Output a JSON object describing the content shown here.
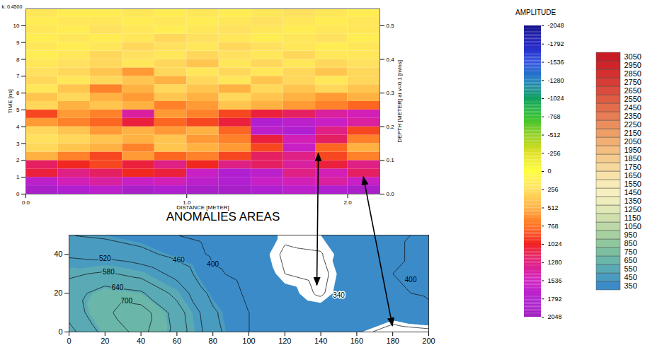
{
  "chart_data": [
    {
      "type": "heatmap",
      "corner_label": "k: 0.4500",
      "x_label": "DISTANCE [METER]",
      "y_label": "TIME [ns]",
      "y2_label": "DEPTH [METER] at v=0.1 [m/ns]",
      "xlim": [
        0,
        2.2
      ],
      "xticks": [
        {
          "value": 0,
          "label": "0.0"
        },
        {
          "value": 1,
          "label": "1.0"
        },
        {
          "value": 2,
          "label": "2.0"
        }
      ],
      "ylim": [
        0,
        11
      ],
      "yticks": [
        0,
        1,
        2,
        3,
        4,
        5,
        6,
        7,
        8,
        9,
        10
      ],
      "y2lim": [
        0,
        0.55
      ],
      "y2ticks": [
        {
          "value": 0,
          "label": "0.0"
        },
        {
          "value": 0.1,
          "label": "0.1"
        },
        {
          "value": 0.2,
          "label": "0.2"
        },
        {
          "value": 0.3,
          "label": "0.3"
        },
        {
          "value": 0.4,
          "label": "0.4"
        },
        {
          "value": 0.5,
          "label": "0.5"
        }
      ],
      "x_bins": [
        0,
        0.2,
        0.4,
        0.6,
        0.8,
        1.0,
        1.2,
        1.4,
        1.6,
        1.8,
        2.0,
        2.2
      ],
      "y_bins": [
        0,
        0.5,
        1,
        1.5,
        2,
        2.5,
        3,
        3.5,
        4,
        4.5,
        5,
        5.5,
        6,
        6.5,
        7,
        7.5,
        8,
        8.5,
        9,
        9.5,
        10,
        10.5,
        11
      ],
      "cells": [
        [
          1900,
          1800,
          1700,
          1900,
          1800,
          1900,
          1900,
          1800,
          1700,
          1800,
          1900
        ],
        [
          1700,
          1500,
          1400,
          1600,
          1500,
          1700,
          1800,
          1600,
          1500,
          1400,
          1600
        ],
        [
          1100,
          1300,
          1200,
          1000,
          1100,
          1600,
          1800,
          1700,
          1300,
          1500,
          1200
        ],
        [
          1200,
          1000,
          900,
          1100,
          1300,
          1000,
          1300,
          1200,
          1400,
          1100,
          1300
        ],
        [
          500,
          700,
          900,
          600,
          800,
          700,
          900,
          1200,
          1300,
          900,
          700
        ],
        [
          300,
          400,
          500,
          700,
          400,
          500,
          600,
          900,
          1600,
          800,
          500
        ],
        [
          250,
          300,
          400,
          500,
          400,
          600,
          700,
          1100,
          1500,
          1200,
          700
        ],
        [
          300,
          400,
          600,
          500,
          600,
          500,
          800,
          1700,
          1800,
          1300,
          900
        ],
        [
          600,
          700,
          800,
          1100,
          800,
          900,
          1100,
          1800,
          1700,
          1600,
          1400
        ],
        [
          900,
          600,
          700,
          1400,
          600,
          700,
          900,
          1100,
          1200,
          1400,
          1500
        ],
        [
          300,
          500,
          400,
          500,
          700,
          600,
          400,
          500,
          600,
          700,
          800
        ],
        [
          400,
          300,
          500,
          600,
          400,
          500,
          300,
          400,
          500,
          600,
          500
        ],
        [
          200,
          400,
          700,
          500,
          300,
          400,
          500,
          300,
          400,
          300,
          400
        ],
        [
          300,
          200,
          300,
          400,
          500,
          300,
          200,
          400,
          300,
          200,
          300
        ],
        [
          250,
          300,
          400,
          600,
          300,
          200,
          300,
          200,
          300,
          400,
          300
        ],
        [
          200,
          250,
          300,
          200,
          300,
          400,
          200,
          300,
          200,
          300,
          250
        ],
        [
          150,
          200,
          300,
          250,
          200,
          300,
          250,
          200,
          300,
          200,
          200
        ],
        [
          200,
          150,
          200,
          300,
          250,
          200,
          300,
          250,
          200,
          150,
          200
        ],
        [
          150,
          200,
          150,
          200,
          300,
          250,
          200,
          150,
          200,
          250,
          150
        ],
        [
          200,
          150,
          250,
          200,
          150,
          200,
          250,
          200,
          150,
          200,
          200
        ],
        [
          150,
          200,
          200,
          150,
          200,
          150,
          200,
          250,
          200,
          150,
          200
        ],
        [
          200,
          150,
          150,
          200,
          150,
          200,
          150,
          200,
          250,
          200,
          150
        ]
      ],
      "colorbar": {
        "label": "AMPLITUDE",
        "range": [
          -2048,
          2048
        ],
        "ticks": [
          -2048,
          -1792,
          -1536,
          -1280,
          -1024,
          -768,
          -512,
          -256,
          0,
          256,
          512,
          768,
          1024,
          1280,
          1536,
          1792,
          2048
        ],
        "colors": [
          "#10108a",
          "#2020c0",
          "#3050e0",
          "#2080c0",
          "#10a060",
          "#30c030",
          "#90d020",
          "#e0e020",
          "#ffff40",
          "#ffe060",
          "#ffb040",
          "#ff7020",
          "#f02020",
          "#e02080",
          "#d020c0",
          "#b020d0",
          "#a020c0"
        ]
      }
    },
    {
      "type": "contour",
      "title": "ANOMALIES AREAS",
      "xlim": [
        0,
        200
      ],
      "xticks": [
        0,
        20,
        40,
        60,
        80,
        100,
        120,
        140,
        160,
        180,
        200
      ],
      "ylim": [
        0,
        50
      ],
      "yticks": [
        0,
        20,
        40
      ],
      "grid_x": [
        0,
        20,
        40,
        60,
        80,
        100,
        120,
        140,
        160,
        180,
        200
      ],
      "grid_y": [
        0,
        10,
        20,
        30,
        40,
        50
      ],
      "values": [
        [
          560,
          660,
          720,
          620,
          480,
          400,
          380,
          370,
          355,
          320,
          330
        ],
        [
          600,
          690,
          735,
          610,
          470,
          400,
          375,
          365,
          360,
          370,
          390
        ],
        [
          610,
          670,
          650,
          560,
          440,
          390,
          360,
          335,
          380,
          395,
          405
        ],
        [
          570,
          590,
          560,
          500,
          410,
          380,
          340,
          330,
          375,
          400,
          410
        ],
        [
          510,
          500,
          480,
          440,
          390,
          370,
          335,
          338,
          370,
          395,
          410
        ],
        [
          460,
          450,
          430,
          400,
          380,
          370,
          345,
          350,
          375,
          395,
          405
        ]
      ],
      "contour_levels": [
        340,
        400,
        460,
        520,
        580,
        640,
        700
      ],
      "contour_labels": [
        {
          "value": 520,
          "x": 20,
          "y": 38
        },
        {
          "value": 580,
          "x": 22,
          "y": 31
        },
        {
          "value": 640,
          "x": 27,
          "y": 23
        },
        {
          "value": 700,
          "x": 32,
          "y": 16
        },
        {
          "value": 460,
          "x": 61,
          "y": 37
        },
        {
          "value": 400,
          "x": 80,
          "y": 35
        },
        {
          "value": 340,
          "x": 150,
          "y": 19
        },
        {
          "value": 400,
          "x": 190,
          "y": 27
        }
      ],
      "arrows": [
        {
          "distance": 1.82,
          "time": 2.4,
          "x": 138,
          "y": 24
        },
        {
          "distance": 2.1,
          "time": 1.0,
          "x": 180,
          "y": 3
        }
      ],
      "colorbar": {
        "range": [
          350,
          3050
        ],
        "ticks": [
          350,
          450,
          550,
          650,
          750,
          850,
          950,
          1050,
          1150,
          1250,
          1350,
          1450,
          1550,
          1650,
          1750,
          1850,
          1950,
          2050,
          2150,
          2250,
          2350,
          2450,
          2550,
          2650,
          2750,
          2850,
          2950,
          3050
        ],
        "colors": [
          "#3b8bc8",
          "#4a9bc0",
          "#5aaab5",
          "#6ab6a9",
          "#7cbfa0",
          "#90c89e",
          "#a6d0a0",
          "#bcd8a6",
          "#cfe0ad",
          "#e0e8b6",
          "#eeeebc",
          "#f6f0c0",
          "#f8ebb8",
          "#f8e2aa",
          "#f7d89c",
          "#f5cc8e",
          "#f3be80",
          "#f1af74",
          "#ee9f68",
          "#eb8e5e",
          "#e77d54",
          "#e36c4b",
          "#df5c43",
          "#db4c3c",
          "#d73d35",
          "#d3302f",
          "#cf2529",
          "#c81c24"
        ]
      }
    }
  ]
}
